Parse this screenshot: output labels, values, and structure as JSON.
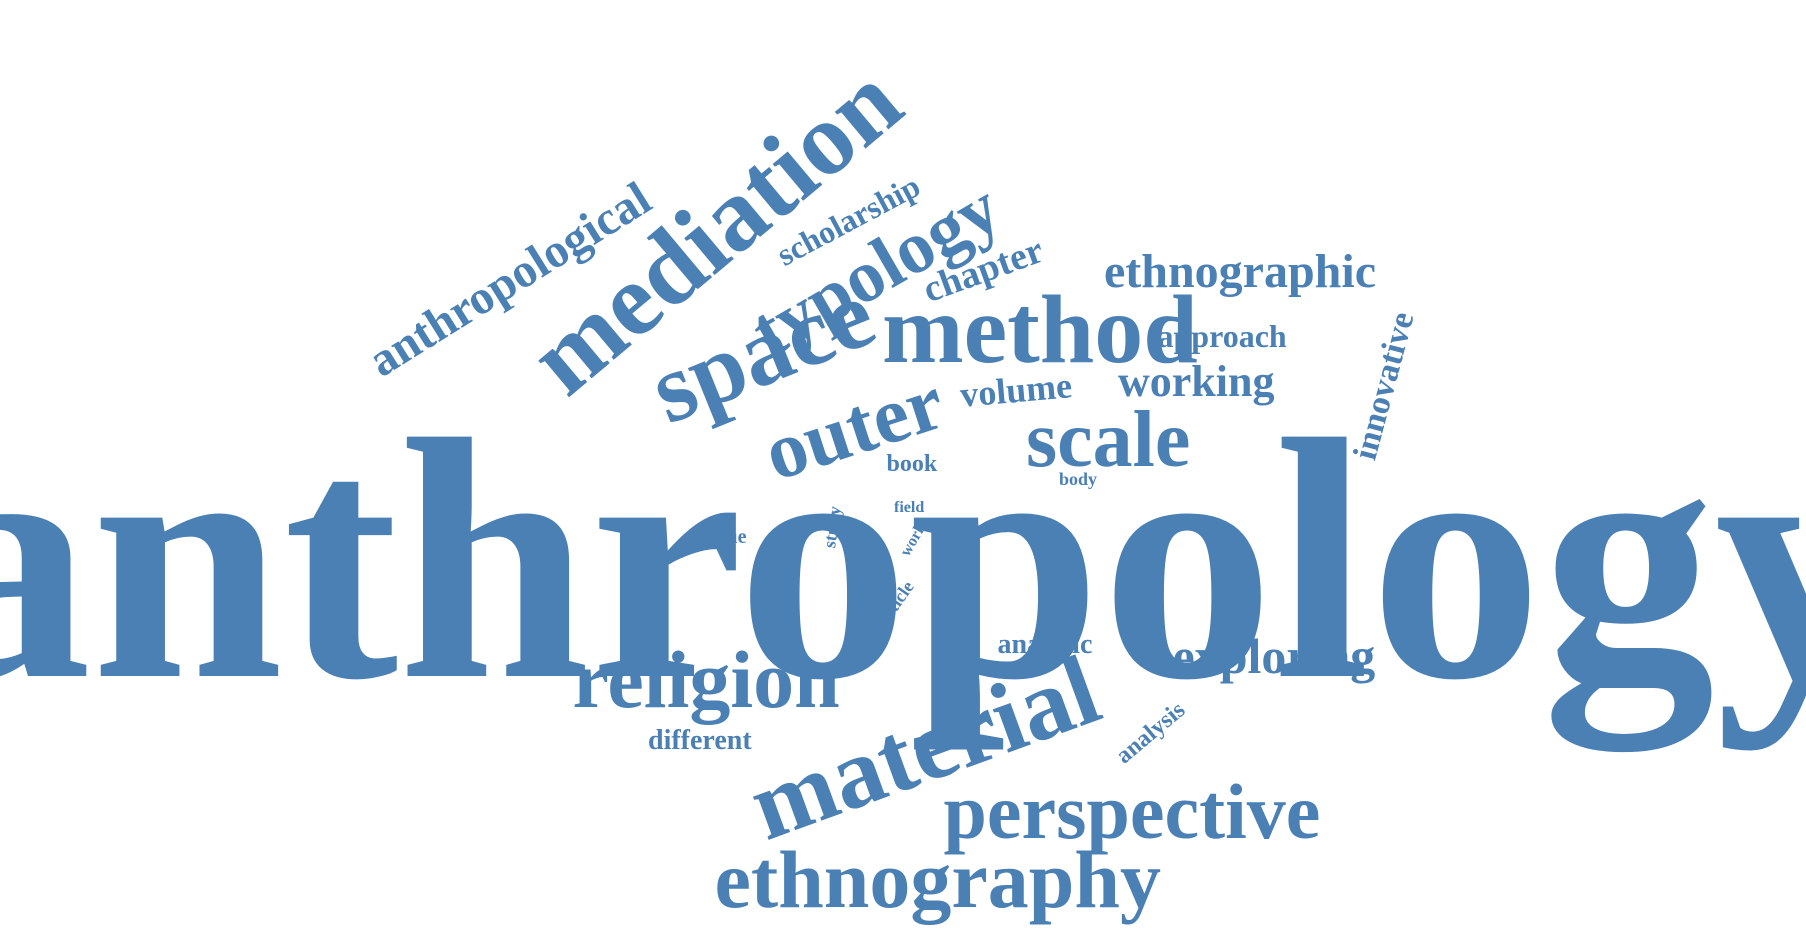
{
  "colors": {
    "background": "#ffffff",
    "word": "#4a80b4"
  },
  "words": [
    {
      "key": "anthropology",
      "text": "anthropology",
      "size_rank": 1,
      "orientation": "horizontal"
    },
    {
      "key": "mediation",
      "text": "mediation",
      "size_rank": 2,
      "orientation": "rotated"
    },
    {
      "key": "method",
      "text": "method",
      "size_rank": 3,
      "orientation": "horizontal"
    },
    {
      "key": "space",
      "text": "space",
      "size_rank": 4,
      "orientation": "rotated"
    },
    {
      "key": "material",
      "text": "material",
      "size_rank": 5,
      "orientation": "rotated"
    },
    {
      "key": "religion",
      "text": "religion",
      "size_rank": 6,
      "orientation": "horizontal"
    },
    {
      "key": "ethnography",
      "text": "ethnography",
      "size_rank": 7,
      "orientation": "horizontal"
    },
    {
      "key": "perspective",
      "text": "perspective",
      "size_rank": 8,
      "orientation": "horizontal"
    },
    {
      "key": "scale",
      "text": "scale",
      "size_rank": 9,
      "orientation": "horizontal"
    },
    {
      "key": "outer",
      "text": "outer",
      "size_rank": 10,
      "orientation": "rotated"
    },
    {
      "key": "typology",
      "text": "typology",
      "size_rank": 11,
      "orientation": "rotated"
    },
    {
      "key": "exploring",
      "text": "exploring",
      "size_rank": 12,
      "orientation": "horizontal"
    },
    {
      "key": "anthropological",
      "text": "anthropological",
      "size_rank": 13,
      "orientation": "rotated"
    },
    {
      "key": "ethnographic",
      "text": "ethnographic",
      "size_rank": 14,
      "orientation": "horizontal"
    },
    {
      "key": "working",
      "text": "working",
      "size_rank": 15,
      "orientation": "horizontal"
    },
    {
      "key": "chapter",
      "text": "chapter",
      "size_rank": 16,
      "orientation": "rotated"
    },
    {
      "key": "volume",
      "text": "volume",
      "size_rank": 17,
      "orientation": "horizontal"
    },
    {
      "key": "innovative",
      "text": "innovative",
      "size_rank": 18,
      "orientation": "vertical"
    },
    {
      "key": "scholarship",
      "text": "scholarship",
      "size_rank": 19,
      "orientation": "rotated"
    },
    {
      "key": "approach",
      "text": "approach",
      "size_rank": 20,
      "orientation": "horizontal"
    },
    {
      "key": "analytic",
      "text": "analytic",
      "size_rank": 21,
      "orientation": "horizontal"
    },
    {
      "key": "different",
      "text": "different",
      "size_rank": 22,
      "orientation": "horizontal"
    },
    {
      "key": "analysis",
      "text": "analysis",
      "size_rank": 23,
      "orientation": "rotated"
    },
    {
      "key": "book",
      "text": "book",
      "size_rank": 24,
      "orientation": "horizontal"
    },
    {
      "key": "value",
      "text": "value",
      "size_rank": 25,
      "orientation": "horizontal"
    },
    {
      "key": "body",
      "text": "body",
      "size_rank": 26,
      "orientation": "horizontal"
    },
    {
      "key": "study",
      "text": "study",
      "size_rank": 27,
      "orientation": "vertical"
    },
    {
      "key": "article",
      "text": "article",
      "size_rank": 28,
      "orientation": "rotated"
    },
    {
      "key": "field",
      "text": "field",
      "size_rank": 29,
      "orientation": "horizontal"
    },
    {
      "key": "work",
      "text": "work",
      "size_rank": 30,
      "orientation": "rotated"
    }
  ]
}
